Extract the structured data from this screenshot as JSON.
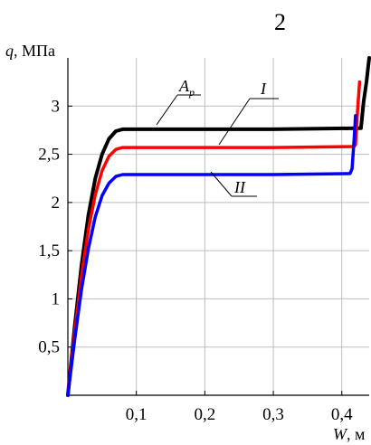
{
  "header": {
    "partial_text": "2"
  },
  "chart_data": {
    "type": "line",
    "title": "",
    "xlabel_parts": {
      "var": "W",
      "unit": ", м"
    },
    "ylabel_parts": {
      "var": "q",
      "unit": ", МПа"
    },
    "xlim": [
      0,
      0.44
    ],
    "ylim": [
      0,
      3.5
    ],
    "x_ticks": [
      {
        "value": 0.1,
        "label": "0,1"
      },
      {
        "value": 0.2,
        "label": "0,2"
      },
      {
        "value": 0.3,
        "label": "0,3"
      },
      {
        "value": 0.4,
        "label": "0,4"
      }
    ],
    "y_ticks": [
      {
        "value": 0.5,
        "label": "0,5"
      },
      {
        "value": 1.0,
        "label": "1"
      },
      {
        "value": 1.5,
        "label": "1,5"
      },
      {
        "value": 2.0,
        "label": "2"
      },
      {
        "value": 2.5,
        "label": "2,5"
      },
      {
        "value": 3.0,
        "label": "3"
      }
    ],
    "grid": true,
    "series": [
      {
        "name": "Ap",
        "label": {
          "base": "A",
          "sub": "p"
        },
        "color": "#000000",
        "x": [
          0,
          0.01,
          0.02,
          0.03,
          0.04,
          0.05,
          0.06,
          0.07,
          0.08,
          0.2,
          0.3,
          0.42,
          0.428,
          0.432,
          0.436,
          0.44
        ],
        "y": [
          0,
          0.72,
          1.35,
          1.87,
          2.25,
          2.5,
          2.66,
          2.74,
          2.76,
          2.76,
          2.76,
          2.77,
          2.77,
          3.05,
          3.25,
          3.5
        ]
      },
      {
        "name": "I",
        "label": {
          "base": "I",
          "sub": ""
        },
        "color": "#ff0000",
        "x": [
          0,
          0.01,
          0.02,
          0.03,
          0.04,
          0.05,
          0.06,
          0.07,
          0.08,
          0.2,
          0.3,
          0.418,
          0.42,
          0.423,
          0.426
        ],
        "y": [
          0,
          0.66,
          1.24,
          1.72,
          2.08,
          2.33,
          2.48,
          2.55,
          2.57,
          2.57,
          2.57,
          2.58,
          2.6,
          2.95,
          3.25
        ]
      },
      {
        "name": "II",
        "label": {
          "base": "II",
          "sub": ""
        },
        "color": "#0000ff",
        "x": [
          0,
          0.01,
          0.02,
          0.03,
          0.04,
          0.05,
          0.06,
          0.07,
          0.08,
          0.2,
          0.3,
          0.412,
          0.415,
          0.418,
          0.42
        ],
        "y": [
          0,
          0.58,
          1.1,
          1.52,
          1.85,
          2.07,
          2.2,
          2.27,
          2.29,
          2.29,
          2.29,
          2.3,
          2.35,
          2.65,
          2.9
        ]
      }
    ]
  }
}
